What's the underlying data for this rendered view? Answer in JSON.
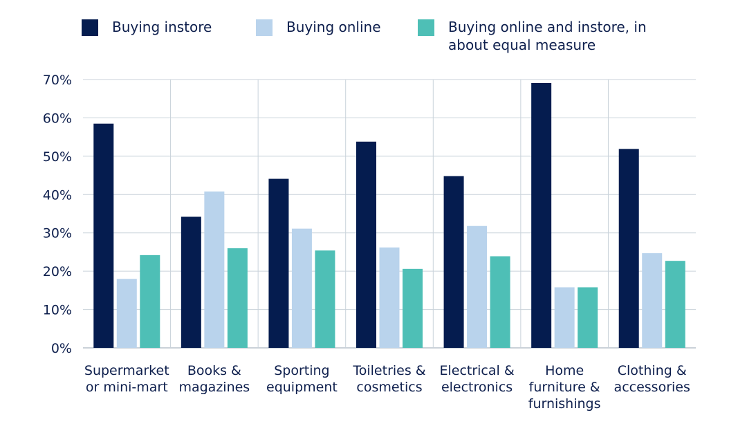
{
  "chart_data": {
    "type": "bar",
    "categories": [
      [
        "Supermarket",
        "or mini-mart"
      ],
      [
        "Books &",
        "magazines"
      ],
      [
        "Sporting",
        "equipment"
      ],
      [
        "Toiletries &",
        "cosmetics"
      ],
      [
        "Electrical &",
        "electronics"
      ],
      [
        "Home",
        "furniture &",
        "furnishings"
      ],
      [
        "Clothing &",
        "accessories"
      ]
    ],
    "series": [
      {
        "name": "Buying instore",
        "color": "#051c4f",
        "values": [
          58.5,
          34.2,
          44.1,
          53.8,
          44.8,
          69.1,
          51.9
        ]
      },
      {
        "name": "Buying online",
        "color": "#b9d3ec",
        "values": [
          18.0,
          40.8,
          31.1,
          26.2,
          31.8,
          15.8,
          24.7
        ]
      },
      {
        "name": "Buying online and instore, in about equal measure",
        "legend_lines": [
          "Buying online and instore, in",
          "about equal measure"
        ],
        "color": "#4ebfb6",
        "values": [
          24.2,
          26.0,
          25.4,
          20.6,
          23.9,
          15.8,
          22.7
        ]
      }
    ],
    "yticks": [
      "0%",
      "10%",
      "20%",
      "30%",
      "40%",
      "50%",
      "60%",
      "70%"
    ],
    "ylim": [
      0,
      70
    ],
    "grid": true,
    "legend_position": "top",
    "title": "",
    "xlabel": "",
    "ylabel": ""
  }
}
